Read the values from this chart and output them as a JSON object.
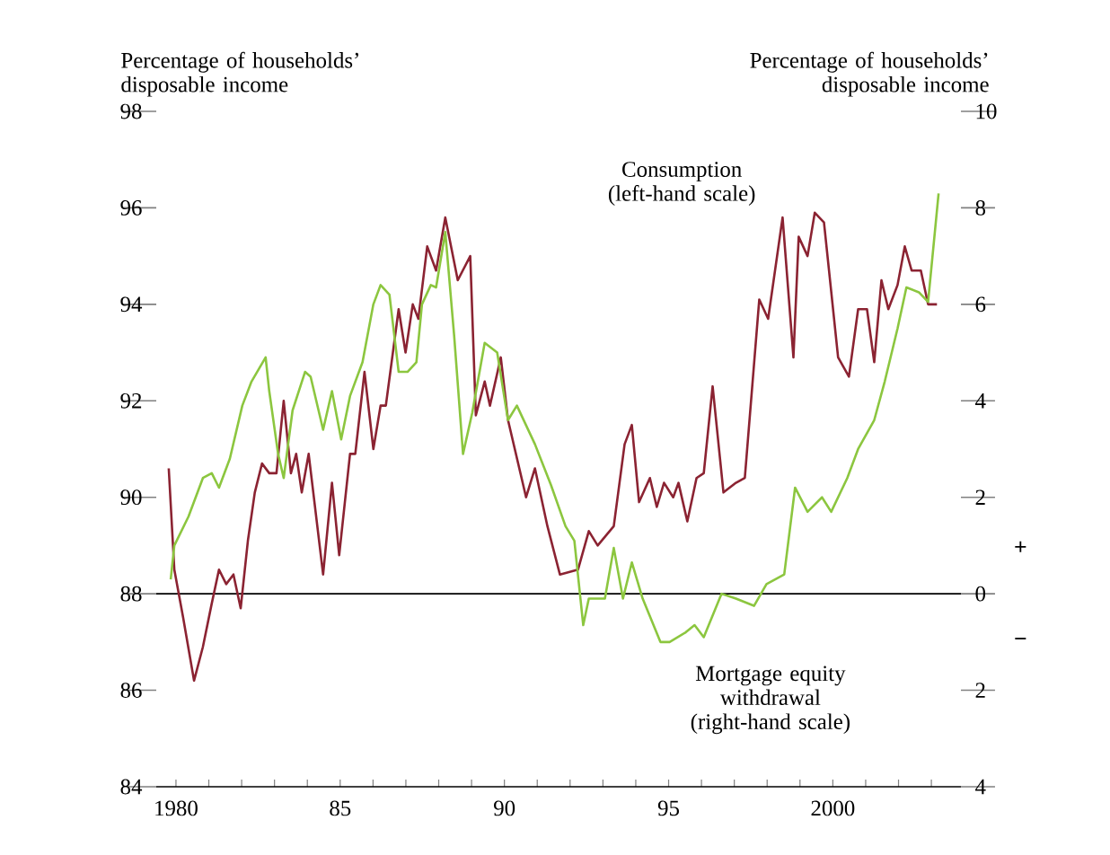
{
  "chart_data": {
    "type": "line",
    "ylabel": "Percentage of households’ disposable income",
    "y2label": "Percentage of households’ disposable income",
    "xlim": [
      1979.4,
      2003.9
    ],
    "xticks": [
      1980,
      {
        "value": 1981,
        "label": null
      },
      {
        "value": 1982,
        "label": null
      },
      {
        "value": 1983,
        "label": null
      },
      {
        "value": 1984,
        "label": null
      },
      {
        "value": 1985,
        "label": "85"
      },
      {
        "value": 1986,
        "label": null
      },
      {
        "value": 1987,
        "label": null
      },
      {
        "value": 1988,
        "label": null
      },
      {
        "value": 1989,
        "label": null
      },
      {
        "value": 1990,
        "label": "90"
      },
      {
        "value": 1991,
        "label": null
      },
      {
        "value": 1992,
        "label": null
      },
      {
        "value": 1993,
        "label": null
      },
      {
        "value": 1994,
        "label": null
      },
      {
        "value": 1995,
        "label": "95"
      },
      {
        "value": 1996,
        "label": null
      },
      {
        "value": 1997,
        "label": null
      },
      {
        "value": 1998,
        "label": null
      },
      {
        "value": 1999,
        "label": null
      },
      2000,
      {
        "value": 2001,
        "label": null
      },
      {
        "value": 2002,
        "label": null
      },
      {
        "value": 2003,
        "label": null
      }
    ],
    "ylim": [
      84,
      98
    ],
    "yticks": [
      84,
      86,
      88,
      90,
      92,
      94,
      96,
      98
    ],
    "y2lim": [
      -4,
      10
    ],
    "y2ticks": [
      {
        "value": -4,
        "label": "4"
      },
      {
        "value": -2,
        "label": "2"
      },
      0,
      2,
      4,
      6,
      8,
      10
    ],
    "ref_lines": [
      {
        "axis": "y",
        "value": 88,
        "color": "#000000"
      }
    ],
    "annotations": [
      "+",
      "−"
    ],
    "series": [
      {
        "name": "Consumption (left-hand scale)",
        "color": "#8b2332",
        "x": [
          1979.78,
          1979.95,
          1980.22,
          1980.55,
          1980.82,
          1981.09,
          1981.31,
          1981.53,
          1981.75,
          1981.97,
          1982.19,
          1982.4,
          1982.62,
          1982.84,
          1983.06,
          1983.28,
          1983.5,
          1983.66,
          1983.83,
          1984.04,
          1984.48,
          1984.75,
          1984.97,
          1985.3,
          1985.46,
          1985.74,
          1986.01,
          1986.23,
          1986.39,
          1986.78,
          1986.99,
          1987.21,
          1987.38,
          1987.65,
          1987.92,
          1988.2,
          1988.58,
          1988.96,
          1989.13,
          1989.4,
          1989.56,
          1989.89,
          1990.11,
          1990.66,
          1990.93,
          1991.31,
          1991.69,
          1992.24,
          1992.57,
          1992.84,
          1993.33,
          1993.66,
          1993.88,
          1994.1,
          1994.43,
          1994.64,
          1994.86,
          1995.14,
          1995.3,
          1995.57,
          1995.85,
          1996.07,
          1996.34,
          1996.67,
          1997.05,
          1997.32,
          1997.76,
          1998.03,
          1998.47,
          1998.8,
          1998.96,
          1999.23,
          1999.45,
          1999.73,
          2000.16,
          2000.49,
          2000.77,
          2001.04,
          2001.26,
          2001.48,
          2001.69,
          2001.97,
          2002.19,
          2002.4,
          2002.68,
          2002.9,
          2003.17
        ],
        "values": [
          90.6,
          88.5,
          87.5,
          86.2,
          86.9,
          87.8,
          88.5,
          88.2,
          88.4,
          87.7,
          89.1,
          90.1,
          90.7,
          90.5,
          90.5,
          92.0,
          90.5,
          90.9,
          90.1,
          90.9,
          88.4,
          90.3,
          88.8,
          90.9,
          90.9,
          92.6,
          91.0,
          91.9,
          91.9,
          93.9,
          93.0,
          94.0,
          93.7,
          95.2,
          94.7,
          95.8,
          94.5,
          95.0,
          91.7,
          92.4,
          91.9,
          92.9,
          91.6,
          90.0,
          90.6,
          89.4,
          88.4,
          88.5,
          89.3,
          89.0,
          89.4,
          91.1,
          91.5,
          89.9,
          90.4,
          89.8,
          90.3,
          90.0,
          90.3,
          89.5,
          90.4,
          90.5,
          92.3,
          90.1,
          90.3,
          90.4,
          94.1,
          93.7,
          95.8,
          92.9,
          95.4,
          95.0,
          95.9,
          95.7,
          92.9,
          92.5,
          93.9,
          93.9,
          92.8,
          94.5,
          93.9,
          94.4,
          95.2,
          94.7,
          94.7,
          94.0,
          94.0
        ]
      },
      {
        "name": "Mortgage equity withdrawal (right-hand scale)",
        "color": "#8cc63f",
        "axis": "y2",
        "x": [
          1979.84,
          1979.95,
          1980.38,
          1980.82,
          1981.09,
          1981.31,
          1981.64,
          1982.02,
          1982.3,
          1982.73,
          1982.84,
          1983.11,
          1983.28,
          1983.55,
          1983.93,
          1984.1,
          1984.48,
          1984.75,
          1985.03,
          1985.3,
          1985.68,
          1986.01,
          1986.23,
          1986.5,
          1986.78,
          1987.05,
          1987.32,
          1987.49,
          1987.76,
          1987.92,
          1988.2,
          1988.47,
          1988.74,
          1989.02,
          1989.4,
          1989.78,
          1990.11,
          1990.38,
          1990.93,
          1991.42,
          1991.86,
          1992.13,
          1992.4,
          1992.57,
          1993.06,
          1993.33,
          1993.61,
          1993.88,
          1994.21,
          1994.75,
          1995.03,
          1995.52,
          1995.79,
          1996.07,
          1996.61,
          1997.05,
          1997.6,
          1997.98,
          1998.52,
          1998.85,
          1999.23,
          1999.67,
          1999.95,
          2000.44,
          2000.77,
          2001.26,
          2001.58,
          2001.97,
          2002.24,
          2002.62,
          2002.9,
          2003.22
        ],
        "values": [
          0.3,
          1.0,
          1.6,
          2.4,
          2.5,
          2.2,
          2.8,
          3.9,
          4.4,
          4.9,
          4.2,
          2.9,
          2.4,
          3.8,
          4.6,
          4.5,
          3.4,
          4.2,
          3.2,
          4.1,
          4.8,
          6.0,
          6.4,
          6.2,
          4.6,
          4.6,
          4.8,
          6.0,
          6.4,
          6.35,
          7.5,
          5.35,
          2.9,
          3.75,
          5.2,
          5.0,
          3.6,
          3.9,
          3.1,
          2.25,
          1.4,
          1.1,
          -0.65,
          -0.1,
          -0.1,
          0.95,
          -0.1,
          0.65,
          -0.1,
          -1.0,
          -1.0,
          -0.8,
          -0.65,
          -0.9,
          0.0,
          -0.1,
          -0.25,
          0.2,
          0.4,
          2.2,
          1.7,
          2.0,
          1.7,
          2.4,
          3.0,
          3.6,
          4.4,
          5.5,
          6.35,
          6.25,
          6.05,
          8.3
        ]
      }
    ]
  }
}
